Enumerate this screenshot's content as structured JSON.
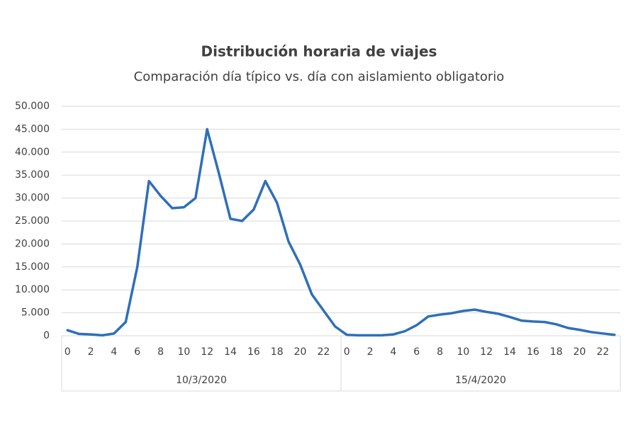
{
  "chart_data": {
    "type": "line",
    "title": "Distribución horaria de viajes",
    "subtitle": "Comparación  día típico vs. día con aislamiento obligatorio",
    "categories": [
      "0",
      null,
      "2",
      null,
      "4",
      null,
      "6",
      null,
      "8",
      null,
      "10",
      null,
      "12",
      null,
      "14",
      null,
      "16",
      null,
      "18",
      null,
      "20",
      null,
      "22",
      null,
      "0",
      null,
      "2",
      null,
      "4",
      null,
      "6",
      null,
      "8",
      null,
      "10",
      null,
      "12",
      null,
      "14",
      null,
      "16",
      null,
      "18",
      null,
      "20",
      null,
      "22",
      null
    ],
    "groups": [
      "10/3/2020",
      "15/4/2020"
    ],
    "values": [
      1200,
      400,
      300,
      100,
      500,
      3000,
      15000,
      33700,
      30500,
      27800,
      28000,
      30000,
      45000,
      35500,
      25500,
      25000,
      27500,
      33700,
      29000,
      20500,
      15500,
      9000,
      5500,
      2000,
      200,
      100,
      100,
      100,
      300,
      1000,
      2300,
      4200,
      4600,
      4900,
      5400,
      5700,
      5200,
      4800,
      4100,
      3300,
      3100,
      3000,
      2500,
      1700,
      1300,
      800,
      500,
      200
    ],
    "color": "#2e6fba",
    "ylim": [
      0,
      50000
    ],
    "yticks": [
      0,
      {
        "value": 5000,
        "label": "5.000"
      },
      {
        "value": 10000,
        "label": "10.000"
      },
      {
        "value": 15000,
        "label": "15.000"
      },
      {
        "value": 20000,
        "label": "20.000"
      },
      {
        "value": 25000,
        "label": "25.000"
      },
      {
        "value": 30000,
        "label": "30.000"
      },
      {
        "value": 35000,
        "label": "35.000"
      },
      {
        "value": 40000,
        "label": "40.000"
      },
      {
        "value": 45000,
        "label": "45.000"
      },
      {
        "value": 50000,
        "label": "50.000"
      }
    ],
    "grid": true
  }
}
